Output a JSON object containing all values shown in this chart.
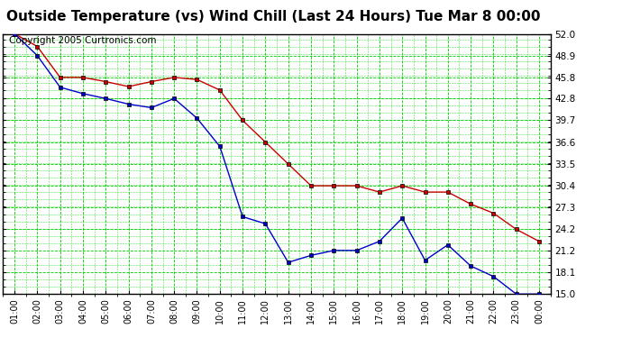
{
  "title": "Outside Temperature (vs) Wind Chill (Last 24 Hours) Tue Mar 8 00:00",
  "copyright": "Copyright 2005 Curtronics.com",
  "x_labels": [
    "01:00",
    "02:00",
    "03:00",
    "04:00",
    "05:00",
    "06:00",
    "07:00",
    "08:00",
    "09:00",
    "10:00",
    "11:00",
    "12:00",
    "13:00",
    "14:00",
    "15:00",
    "16:00",
    "17:00",
    "18:00",
    "19:00",
    "20:00",
    "21:00",
    "22:00",
    "23:00",
    "00:00"
  ],
  "y_ticks": [
    15.0,
    18.1,
    21.2,
    24.2,
    27.3,
    30.4,
    33.5,
    36.6,
    39.7,
    42.8,
    45.8,
    48.9,
    52.0
  ],
  "y_min": 15.0,
  "y_max": 52.0,
  "outside_temp": [
    52.0,
    50.2,
    45.8,
    45.8,
    45.2,
    44.5,
    45.2,
    45.8,
    45.5,
    44.0,
    39.7,
    36.6,
    33.5,
    30.4,
    30.4,
    30.4,
    29.5,
    30.4,
    29.5,
    29.5,
    27.8,
    26.5,
    24.2,
    22.5
  ],
  "wind_chill": [
    52.0,
    48.9,
    44.4,
    43.5,
    42.8,
    42.0,
    41.5,
    42.8,
    40.0,
    36.0,
    26.0,
    25.0,
    19.5,
    20.5,
    21.2,
    21.2,
    22.5,
    25.8,
    19.8,
    22.0,
    19.0,
    17.5,
    15.0,
    15.0
  ],
  "temp_color": "#cc0000",
  "wind_color": "#0000cc",
  "bg_color": "#ffffff",
  "grid_major_color": "#00cc00",
  "grid_minor_color": "#00cc00",
  "title_fontsize": 11,
  "copyright_fontsize": 7.5,
  "marker_edge_color": "#000000"
}
